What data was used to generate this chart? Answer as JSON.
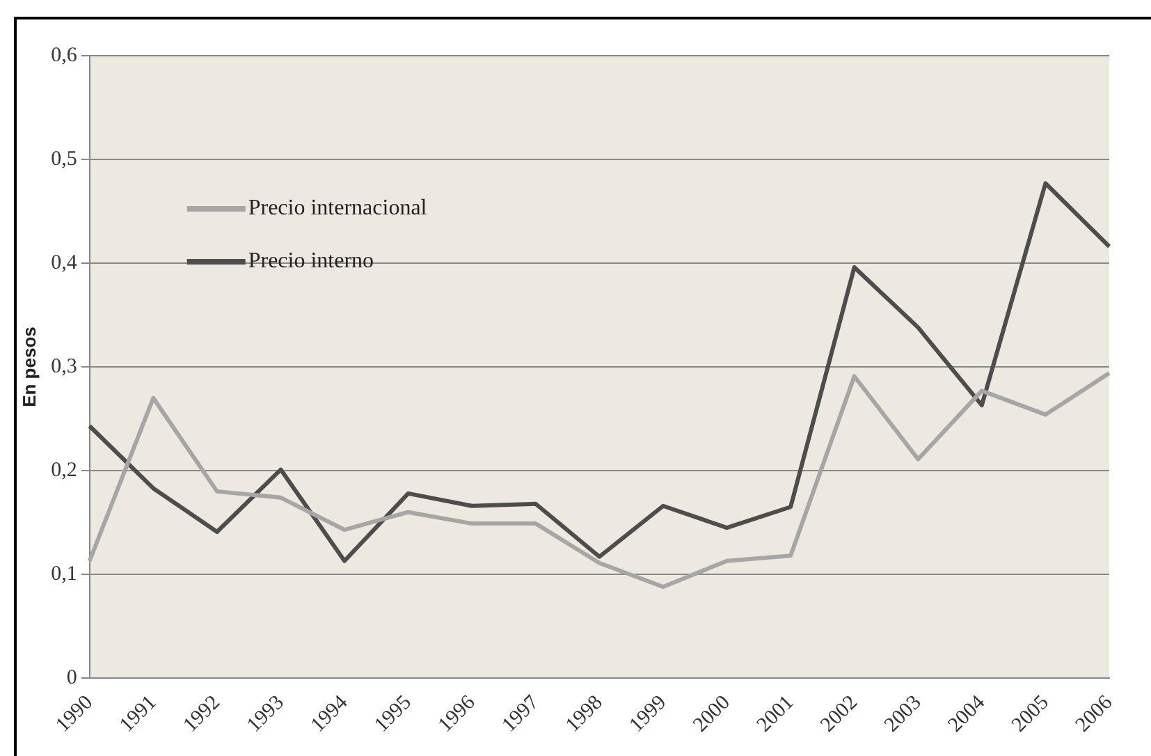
{
  "chart_data": {
    "type": "line",
    "ylabel": "En pesos",
    "categories": [
      "1990",
      "1991",
      "1992",
      "1993",
      "1994",
      "1995",
      "1996",
      "1997",
      "1998",
      "1999",
      "2000",
      "2001",
      "2002",
      "2003",
      "2004",
      "2005",
      "2006"
    ],
    "series": [
      {
        "name": "Precio internacional",
        "color": "#a6a6a6",
        "values": [
          0.113,
          0.27,
          0.18,
          0.174,
          0.143,
          0.16,
          0.149,
          0.149,
          0.111,
          0.088,
          0.113,
          0.118,
          0.291,
          0.211,
          0.277,
          0.254,
          0.294
        ]
      },
      {
        "name": "Precio interno",
        "color": "#4d4d4d",
        "values": [
          0.243,
          0.183,
          0.141,
          0.201,
          0.113,
          0.178,
          0.166,
          0.168,
          0.117,
          0.166,
          0.145,
          0.165,
          0.396,
          0.338,
          0.263,
          0.477,
          0.416
        ]
      }
    ],
    "ylim": [
      0,
      0.6
    ],
    "yticks": [
      {
        "value": 0,
        "label": "0"
      },
      {
        "value": 0.1,
        "label": "0,1"
      },
      {
        "value": 0.2,
        "label": "0,2"
      },
      {
        "value": 0.3,
        "label": "0,3"
      },
      {
        "value": 0.4,
        "label": "0,4"
      },
      {
        "value": 0.5,
        "label": "0,5"
      },
      {
        "value": 0.6,
        "label": "0,6"
      }
    ],
    "grid": "y",
    "legend": "top left",
    "marker": "none",
    "line_style": "solid"
  }
}
